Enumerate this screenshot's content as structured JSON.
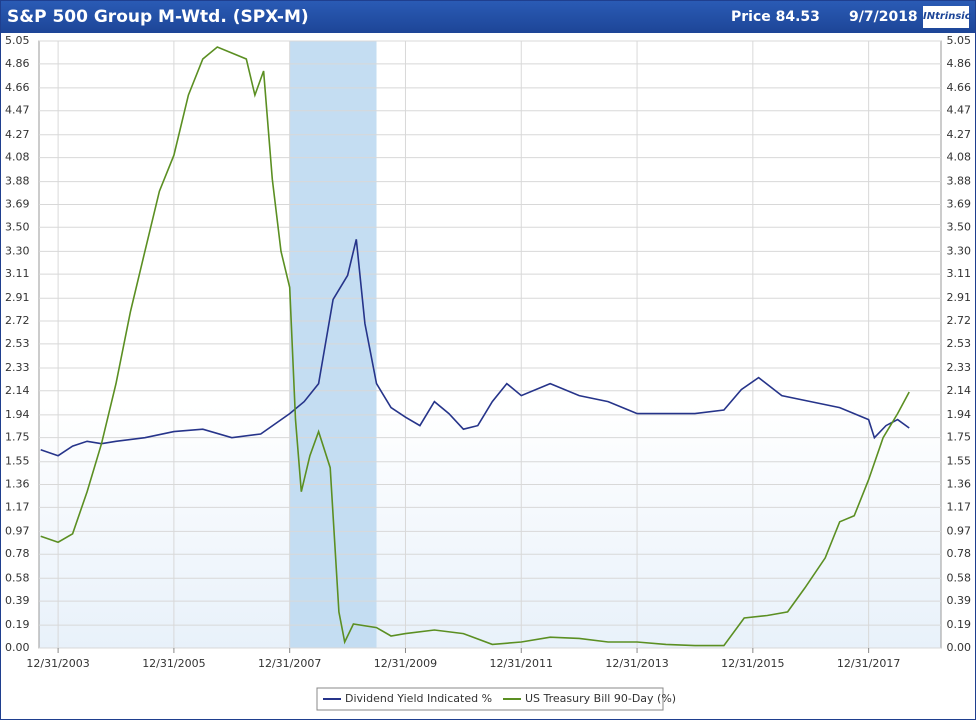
{
  "header": {
    "title": "S&P 500 Group M-Wtd. (SPX-M)",
    "price": "Price 84.53",
    "date": "9/7/2018",
    "logo": "INtrinsic"
  },
  "chart_data": {
    "type": "line",
    "xlim": [
      2003.67,
      2019.25
    ],
    "xticks": [
      {
        "value": 2004,
        "label": "12/31/2003"
      },
      {
        "value": 2006,
        "label": "12/31/2005"
      },
      {
        "value": 2008,
        "label": "12/31/2007"
      },
      {
        "value": 2010,
        "label": "12/31/2009"
      },
      {
        "value": 2012,
        "label": "12/31/2011"
      },
      {
        "value": 2014,
        "label": "12/31/2013"
      },
      {
        "value": 2016,
        "label": "12/31/2015"
      },
      {
        "value": 2018,
        "label": "12/31/2017"
      }
    ],
    "ylim": [
      0,
      5.05
    ],
    "yticks": [
      {
        "value": 0,
        "label": "0.00"
      },
      0.19,
      0.39,
      0.58,
      0.78,
      0.97,
      1.17,
      1.36,
      1.55,
      1.75,
      1.94,
      2.14,
      2.33,
      2.53,
      2.72,
      2.91,
      3.11,
      {
        "value": 3.3,
        "label": "3.30"
      },
      {
        "value": 3.5,
        "label": "3.50"
      },
      3.69,
      3.88,
      4.08,
      4.27,
      4.47,
      4.66,
      4.86,
      5.05
    ],
    "grid": true,
    "shaded_region": [
      2008.0,
      2009.5
    ],
    "series": [
      {
        "name": "Dividend Yield Indicated %",
        "color": "#26348a",
        "x": [
          2003.7,
          2004.0,
          2004.25,
          2004.5,
          2004.75,
          2005.0,
          2005.5,
          2006.0,
          2006.5,
          2007.0,
          2007.5,
          2008.0,
          2008.25,
          2008.5,
          2008.75,
          2009.0,
          2009.15,
          2009.3,
          2009.5,
          2009.75,
          2010.0,
          2010.25,
          2010.5,
          2010.75,
          2011.0,
          2011.25,
          2011.5,
          2011.75,
          2012.0,
          2012.5,
          2013.0,
          2013.5,
          2014.0,
          2014.5,
          2015.0,
          2015.5,
          2015.8,
          2016.1,
          2016.5,
          2017.0,
          2017.5,
          2018.0,
          2018.1,
          2018.3,
          2018.5,
          2018.7
        ],
        "values": [
          1.65,
          1.6,
          1.68,
          1.72,
          1.7,
          1.72,
          1.75,
          1.8,
          1.82,
          1.75,
          1.78,
          1.95,
          2.05,
          2.2,
          2.9,
          3.1,
          3.4,
          2.7,
          2.2,
          2.0,
          1.92,
          1.85,
          2.05,
          1.95,
          1.82,
          1.85,
          2.05,
          2.2,
          2.1,
          2.2,
          2.1,
          2.05,
          1.95,
          1.95,
          1.95,
          1.98,
          2.15,
          2.25,
          2.1,
          2.05,
          2.0,
          1.9,
          1.75,
          1.85,
          1.9,
          1.83
        ]
      },
      {
        "name": "US Treasury Bill 90-Day (%)",
        "color": "#5b8f22",
        "x": [
          2003.7,
          2004.0,
          2004.25,
          2004.5,
          2004.75,
          2005.0,
          2005.25,
          2005.5,
          2005.75,
          2006.0,
          2006.25,
          2006.5,
          2006.75,
          2007.0,
          2007.25,
          2007.4,
          2007.55,
          2007.7,
          2007.85,
          2008.0,
          2008.1,
          2008.2,
          2008.35,
          2008.5,
          2008.7,
          2008.85,
          2008.95,
          2009.1,
          2009.5,
          2009.75,
          2010.0,
          2010.5,
          2011.0,
          2011.5,
          2012.0,
          2012.5,
          2013.0,
          2013.5,
          2014.0,
          2014.5,
          2015.0,
          2015.5,
          2015.85,
          2016.25,
          2016.6,
          2016.9,
          2017.25,
          2017.5,
          2017.75,
          2018.0,
          2018.25,
          2018.5,
          2018.7
        ],
        "values": [
          0.93,
          0.88,
          0.95,
          1.3,
          1.7,
          2.2,
          2.8,
          3.3,
          3.8,
          4.1,
          4.6,
          4.9,
          5.0,
          4.95,
          4.9,
          4.6,
          4.8,
          3.9,
          3.3,
          3.0,
          1.9,
          1.3,
          1.6,
          1.8,
          1.5,
          0.3,
          0.05,
          0.2,
          0.17,
          0.1,
          0.12,
          0.15,
          0.12,
          0.03,
          0.05,
          0.09,
          0.08,
          0.05,
          0.05,
          0.03,
          0.02,
          0.02,
          0.25,
          0.27,
          0.3,
          0.5,
          0.75,
          1.05,
          1.1,
          1.4,
          1.75,
          1.95,
          2.13
        ]
      }
    ]
  }
}
